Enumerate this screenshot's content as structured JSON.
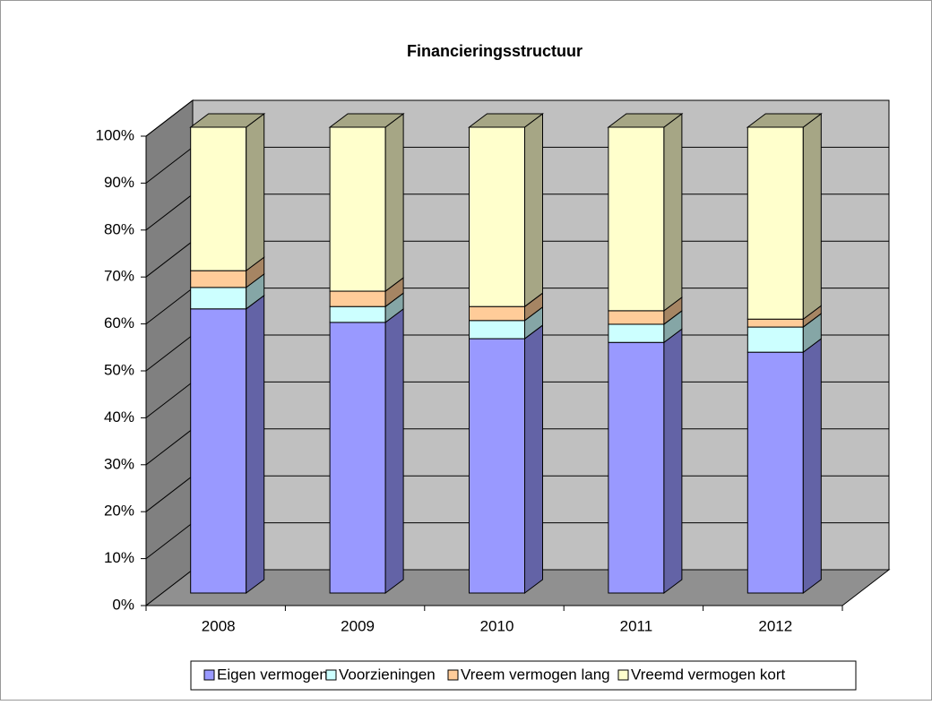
{
  "chart_data": {
    "type": "bar",
    "stacked": true,
    "title": "Financieringsstructuur",
    "categories": [
      "2008",
      "2009",
      "2010",
      "2011",
      "2012"
    ],
    "series": [
      {
        "name": "Eigen vermogen",
        "color": "#9999ff",
        "values": [
          61,
          58.1,
          54.6,
          53.8,
          51.7
        ]
      },
      {
        "name": "Voorzieningen",
        "color": "#ccffff",
        "values": [
          4.6,
          3.4,
          3.9,
          3.9,
          5.4
        ]
      },
      {
        "name": "Vreem vermogen lang",
        "color": "#ffcc99",
        "values": [
          3.6,
          3.3,
          3.0,
          2.9,
          1.7
        ]
      },
      {
        "name": "Vreemd vermogen kort",
        "color": "#ffffcc",
        "values": [
          30.8,
          35.2,
          38.5,
          39.4,
          41.2
        ]
      }
    ],
    "ylim": [
      0,
      100
    ],
    "yticks": [
      {
        "value": 0,
        "label": "0%"
      },
      {
        "value": 10,
        "label": "10%"
      },
      {
        "value": 20,
        "label": "20%"
      },
      {
        "value": 30,
        "label": "30%"
      },
      {
        "value": 40,
        "label": "40%"
      },
      {
        "value": 50,
        "label": "50%"
      },
      {
        "value": 60,
        "label": "60%"
      },
      {
        "value": 70,
        "label": "70%"
      },
      {
        "value": 80,
        "label": "80%"
      },
      {
        "value": 90,
        "label": "90%"
      },
      {
        "value": 100,
        "label": "100%"
      }
    ],
    "grid": true,
    "legend": "bottom"
  }
}
